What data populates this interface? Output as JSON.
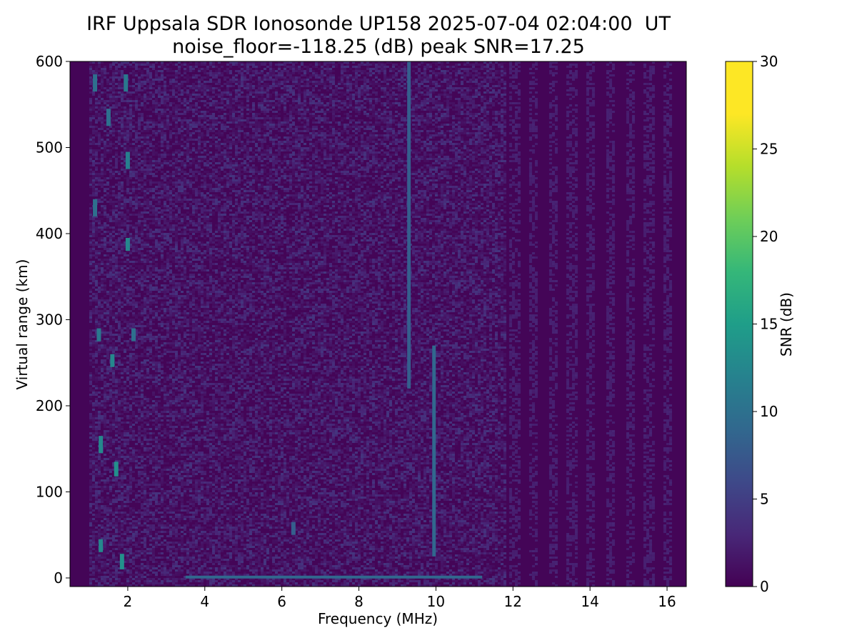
{
  "chart_data": {
    "type": "heatmap",
    "title": "IRF Uppsala SDR Ionosonde UP158 2025-07-04 02:04:00  UT",
    "subtitle": "noise_floor=-118.25 (dB) peak SNR=17.25",
    "xlabel": "Frequency (MHz)",
    "ylabel": "Virtual range (km)",
    "xlim": [
      0.5,
      16.5
    ],
    "ylim": [
      -10,
      600
    ],
    "x_ticks": [
      2,
      4,
      6,
      8,
      10,
      12,
      14,
      16
    ],
    "y_ticks": [
      0,
      100,
      200,
      300,
      400,
      500,
      600
    ],
    "colorbar": {
      "label": "SNR (dB)",
      "colormap": "viridis",
      "range": [
        0,
        30
      ],
      "ticks": [
        0,
        5,
        10,
        15,
        20,
        25,
        30
      ]
    },
    "noise_floor_db": -118.25,
    "peak_snr_db": 17.25,
    "data_extent_mhz": [
      1.0,
      16.4
    ],
    "features": [
      {
        "desc": "vertical trace",
        "freq_mhz": 9.3,
        "range_km": [
          220,
          600
        ],
        "snr_db": 9
      },
      {
        "desc": "vertical trace",
        "freq_mhz": 9.95,
        "range_km": [
          25,
          270
        ],
        "snr_db": 10
      },
      {
        "desc": "horizontal ground echo",
        "freq_range_mhz": [
          3.5,
          11.2
        ],
        "range_km": 1,
        "snr_db": 10
      },
      {
        "desc": "hot spot",
        "freq_mhz": 1.3,
        "range_km": [
          30,
          45
        ],
        "snr_db": 14
      },
      {
        "desc": "hot spot",
        "freq_mhz": 1.3,
        "range_km": [
          145,
          165
        ],
        "snr_db": 14
      },
      {
        "desc": "hot spot",
        "freq_mhz": 1.6,
        "range_km": [
          245,
          260
        ],
        "snr_db": 14
      },
      {
        "desc": "hot spot",
        "freq_mhz": 1.7,
        "range_km": [
          118,
          135
        ],
        "snr_db": 15
      },
      {
        "desc": "hot spot",
        "freq_mhz": 1.85,
        "range_km": [
          10,
          28
        ],
        "snr_db": 15
      },
      {
        "desc": "hot spot",
        "freq_mhz": 2.0,
        "range_km": [
          380,
          395
        ],
        "snr_db": 14
      },
      {
        "desc": "hot spot",
        "freq_mhz": 2.0,
        "range_km": [
          475,
          495
        ],
        "snr_db": 13
      },
      {
        "desc": "hot spot",
        "freq_mhz": 1.95,
        "range_km": [
          565,
          585
        ],
        "snr_db": 12
      },
      {
        "desc": "hot spot",
        "freq_mhz": 1.15,
        "range_km": [
          565,
          585
        ],
        "snr_db": 11
      },
      {
        "desc": "hot spot",
        "freq_mhz": 1.15,
        "range_km": [
          420,
          440
        ],
        "snr_db": 11
      },
      {
        "desc": "hot spot",
        "freq_mhz": 1.25,
        "range_km": [
          275,
          290
        ],
        "snr_db": 12
      },
      {
        "desc": "hot spot",
        "freq_mhz": 2.15,
        "range_km": [
          275,
          290
        ],
        "snr_db": 11
      },
      {
        "desc": "hot spot",
        "freq_mhz": 1.5,
        "range_km": [
          525,
          545
        ],
        "snr_db": 11
      },
      {
        "desc": "hot spot",
        "freq_mhz": 6.3,
        "range_km": [
          50,
          65
        ],
        "snr_db": 9
      }
    ]
  }
}
